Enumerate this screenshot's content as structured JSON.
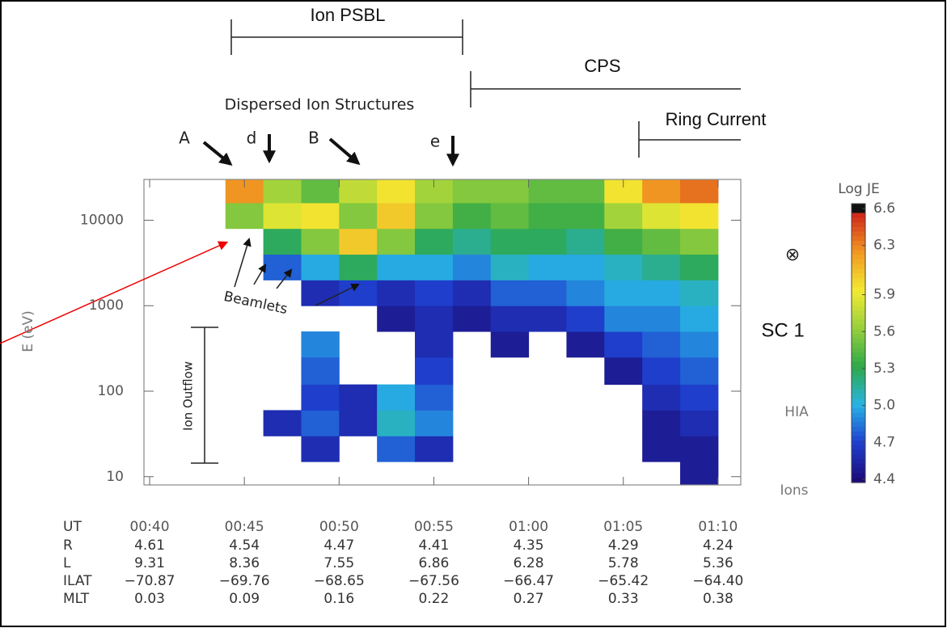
{
  "chart_data": {
    "type": "spectrogram",
    "ylabel": "E (eV)",
    "ylog": true,
    "ylim": [
      8,
      30000
    ],
    "yticks": [
      10,
      100,
      1000,
      10000
    ],
    "xlim": [
      39.7,
      71.2
    ],
    "xticks": [
      {
        "value": 40,
        "label": "00:40"
      },
      {
        "value": 45,
        "label": "00:45"
      },
      {
        "value": 50,
        "label": "00:50"
      },
      {
        "value": 55,
        "label": "00:55"
      },
      {
        "value": 60,
        "label": "01:00"
      },
      {
        "value": 65,
        "label": "01:05"
      },
      {
        "value": 70,
        "label": "01:10"
      }
    ],
    "time_bins": [
      40,
      42,
      44,
      46,
      48,
      50,
      52,
      54,
      56,
      58,
      60,
      62,
      64,
      66,
      68,
      70
    ],
    "energy_bins": [
      8,
      15,
      30,
      60,
      120,
      250,
      500,
      1000,
      2000,
      4000,
      8000,
      16000,
      30000
    ],
    "z": [
      [
        null,
        null,
        null,
        null,
        null,
        null,
        null,
        null,
        null,
        null,
        null,
        null
      ],
      [
        null,
        null,
        null,
        null,
        null,
        null,
        null,
        null,
        null,
        null,
        null,
        null
      ],
      [
        null,
        null,
        null,
        null,
        null,
        null,
        null,
        null,
        null,
        null,
        5.6,
        6.3
      ],
      [
        null,
        null,
        4.6,
        null,
        null,
        null,
        null,
        null,
        4.8,
        5.3,
        5.9,
        5.7
      ],
      [
        null,
        4.6,
        4.8,
        4.7,
        4.8,
        4.9,
        null,
        4.6,
        5.0,
        5.6,
        6.0,
        5.5
      ],
      [
        null,
        null,
        4.6,
        4.6,
        null,
        null,
        null,
        4.7,
        5.3,
        6.1,
        5.6,
        5.8
      ],
      [
        null,
        4.8,
        5.1,
        5.0,
        null,
        null,
        4.5,
        4.6,
        5.0,
        5.6,
        6.1,
        6.0
      ],
      [
        null,
        4.6,
        4.9,
        4.8,
        4.7,
        4.6,
        4.6,
        4.7,
        5.0,
        5.3,
        5.6,
        5.7
      ],
      [
        null,
        null,
        null,
        null,
        null,
        null,
        4.5,
        4.6,
        4.9,
        5.2,
        5.4,
        5.6
      ],
      [
        null,
        null,
        null,
        null,
        null,
        4.5,
        4.6,
        4.8,
        5.1,
        5.3,
        5.5,
        5.6
      ],
      [
        null,
        null,
        null,
        null,
        null,
        null,
        4.6,
        4.8,
        5.0,
        5.3,
        5.4,
        5.5
      ],
      [
        null,
        null,
        null,
        null,
        null,
        4.5,
        4.7,
        4.9,
        5.0,
        5.2,
        5.4,
        5.5
      ],
      [
        null,
        null,
        null,
        null,
        4.5,
        4.7,
        4.9,
        5.0,
        5.1,
        5.4,
        5.7,
        6.0
      ],
      [
        null,
        4.5,
        4.5,
        4.6,
        4.7,
        4.8,
        4.9,
        5.0,
        5.2,
        5.5,
        5.9,
        6.3
      ],
      [
        4.5,
        4.5,
        4.6,
        4.7,
        4.8,
        4.9,
        5.0,
        5.1,
        5.3,
        5.6,
        6.0,
        6.4
      ]
    ],
    "colorbar": {
      "title": "Log JE",
      "lim": [
        4.4,
        6.6
      ],
      "ticks": [
        4.4,
        4.7,
        {
          "value": 5,
          "label": "5.0"
        },
        5.3,
        5.6,
        5.9,
        6.3,
        6.6
      ],
      "colormap": [
        "#1c0c7a",
        "#1f40d0",
        "#28b4e4",
        "#2ea848",
        "#96cf3c",
        "#f2ea32",
        "#f29a22",
        "#d02a1a"
      ]
    },
    "annotations": [
      "Ion PSBL",
      "CPS",
      "Dispersed Ion Structures",
      "Ring Current",
      "A",
      "d",
      "B",
      "e",
      "Beamlets",
      "Ion Outflow",
      "⊗",
      "SC 1",
      "HIA",
      "Ions"
    ]
  },
  "ephemeris": {
    "time_label": "UT",
    "rows": [
      {
        "label": "R",
        "values": [
          "4.61",
          "4.54",
          "4.47",
          "4.41",
          "4.35",
          "4.29",
          "4.24"
        ]
      },
      {
        "label": "L",
        "values": [
          "9.31",
          "8.36",
          "7.55",
          "6.86",
          "6.28",
          "5.78",
          "5.36"
        ]
      },
      {
        "label": "ILAT",
        "values": [
          "−70.87",
          "−69.76",
          "−68.65",
          "−67.56",
          "−66.47",
          "−65.42",
          "−64.40"
        ]
      },
      {
        "label": "MLT",
        "values": [
          "0.03",
          "0.09",
          "0.16",
          "0.22",
          "0.27",
          "0.33",
          "0.38"
        ]
      }
    ]
  }
}
